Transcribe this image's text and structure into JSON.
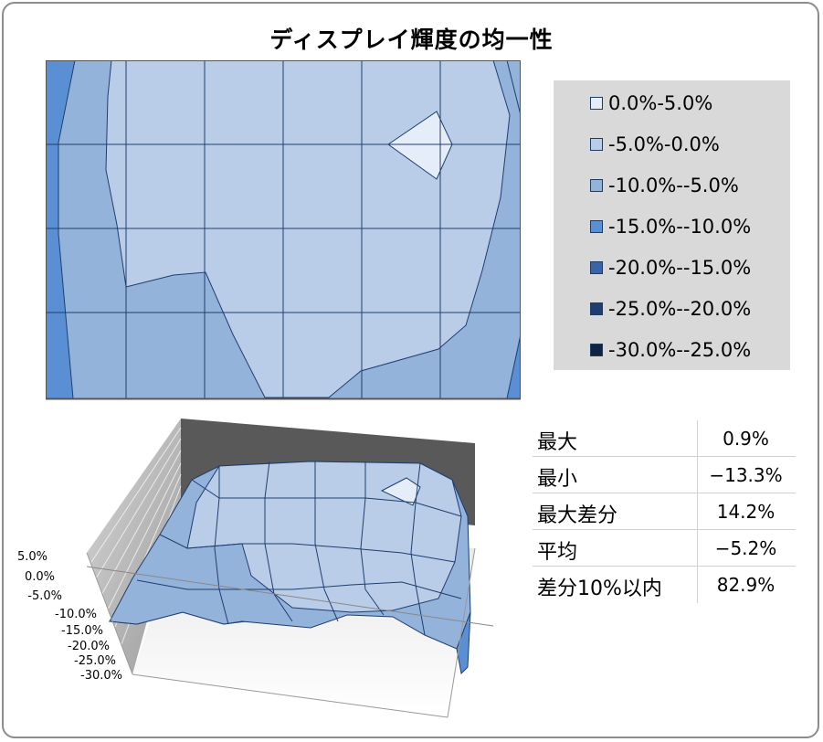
{
  "title": "ディスプレイ輝度の均一性",
  "legend": [
    {
      "label": "0.0%-5.0%",
      "color": "#e4edf8"
    },
    {
      "label": "-5.0%-0.0%",
      "color": "#b9cde8"
    },
    {
      "label": "-10.0%--5.0%",
      "color": "#94b3da"
    },
    {
      "label": "-15.0%--10.0%",
      "color": "#5a8fd4"
    },
    {
      "label": "-20.0%--15.0%",
      "color": "#3a64a8"
    },
    {
      "label": "-25.0%--20.0%",
      "color": "#1f3e6f"
    },
    {
      "label": "-30.0%--25.0%",
      "color": "#0f2442"
    }
  ],
  "stats": [
    {
      "label": "最大",
      "value": "0.9%"
    },
    {
      "label": "最小",
      "value": "−13.3%"
    },
    {
      "label": "最大差分",
      "value": "14.2%"
    },
    {
      "label": "平均",
      "value": "−5.2%"
    },
    {
      "label": "差分10%以内",
      "value": "82.9%"
    }
  ],
  "chart_data": [
    {
      "type": "heatmap",
      "title": "ディスプレイ輝度の均一性",
      "rows": 4,
      "cols": 7,
      "values": [
        [
          -13,
          -8,
          -3,
          -3,
          -2,
          -2,
          -6
        ],
        [
          -11,
          -6,
          -3,
          -2,
          -1,
          0.9,
          -5
        ],
        [
          -12,
          -7,
          -3,
          -3,
          -3,
          -4,
          -6
        ],
        [
          -13,
          -9,
          -7,
          -5,
          -4,
          -6,
          -11
        ]
      ],
      "bands": [
        "0.0%-5.0%",
        "-5.0%-0.0%",
        "-10.0%--5.0%",
        "-15.0%--10.0%",
        "-20.0%--15.0%",
        "-25.0%--20.0%",
        "-30.0%--25.0%"
      ]
    },
    {
      "type": "surface",
      "z_ticks": [
        "5.0%",
        "0.0%",
        "-5.0%",
        "-10.0%",
        "-15.0%",
        "-20.0%",
        "-25.0%",
        "-30.0%"
      ],
      "zlim": [
        -30,
        5
      ]
    }
  ]
}
